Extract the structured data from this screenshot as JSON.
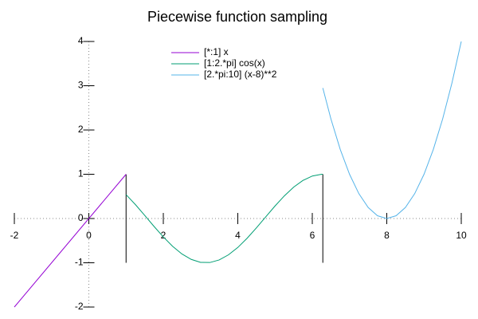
{
  "chart_data": {
    "type": "line",
    "title": "Piecewise function sampling",
    "xlim": [
      -2,
      10
    ],
    "ylim": [
      -2,
      4
    ],
    "xticks": [
      -2,
      0,
      2,
      4,
      6,
      8,
      10
    ],
    "yticks": [
      -2,
      -1,
      0,
      1,
      2,
      3,
      4
    ],
    "zeroaxis": true,
    "legend": "top",
    "vertical_lines": [
      {
        "x": 1,
        "ymin": -1,
        "ymax": 1
      },
      {
        "x": 6.283,
        "ymin": -1,
        "ymax": 1
      }
    ],
    "series": [
      {
        "name": "[*:1] x",
        "color": "#9400d3",
        "x": [
          -2,
          1
        ],
        "values": [
          -2,
          1
        ]
      },
      {
        "name": "[1:2.*pi] cos(x)",
        "color": "#009e73",
        "x": [
          1,
          1.25,
          1.5,
          1.75,
          2,
          2.25,
          2.5,
          2.75,
          3,
          3.25,
          3.5,
          3.75,
          4,
          4.25,
          4.5,
          4.75,
          5,
          5.25,
          5.5,
          5.75,
          6,
          6.25,
          6.283
        ],
        "values": [
          0.54,
          0.315,
          0.071,
          -0.178,
          -0.416,
          -0.628,
          -0.801,
          -0.924,
          -0.99,
          -0.994,
          -0.936,
          -0.82,
          -0.654,
          -0.446,
          -0.211,
          0.037,
          0.284,
          0.512,
          0.709,
          0.861,
          0.96,
          0.999,
          1.0
        ]
      },
      {
        "name": "[2.*pi:10] (x-8)**2",
        "color": "#56b4e9",
        "x": [
          6.283,
          6.5,
          6.75,
          7,
          7.25,
          7.5,
          7.75,
          8,
          8.25,
          8.5,
          8.75,
          9,
          9.25,
          9.5,
          9.75,
          10
        ],
        "values": [
          2.948,
          2.25,
          1.5625,
          1,
          0.5625,
          0.25,
          0.0625,
          0,
          0.0625,
          0.25,
          0.5625,
          1,
          1.5625,
          2.25,
          3.0625,
          4
        ]
      }
    ]
  }
}
